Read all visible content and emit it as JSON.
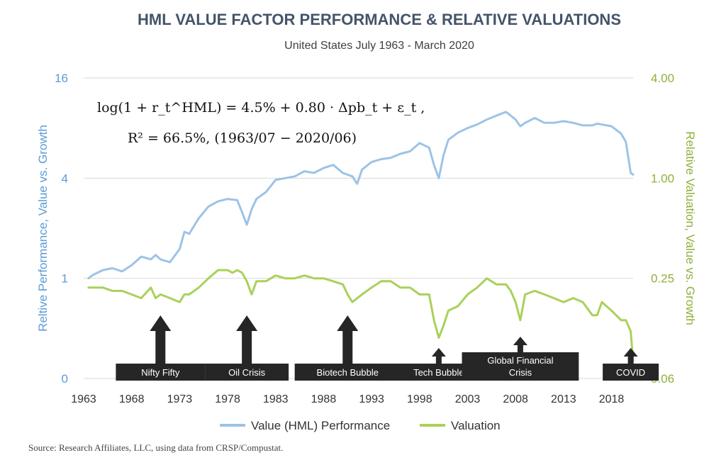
{
  "chart_data": {
    "type": "line",
    "title": "HML VALUE FACTOR PERFORMANCE & RELATIVE VALUATIONS",
    "subtitle": "United States July 1963 - March 2020",
    "ylabel_left": "Reltive Performance, Value vs. Growth",
    "ylabel_right": "Relative Valuation, Value vs. Growth",
    "x_ticks": [
      "1963",
      "1968",
      "1973",
      "1978",
      "1983",
      "1988",
      "1993",
      "1998",
      "2003",
      "2008",
      "2013",
      "2018"
    ],
    "y_left_ticks": [
      "0",
      "1",
      "4",
      "16"
    ],
    "y_right_ticks": [
      "0.06",
      "0.25",
      "1.00",
      "4.00"
    ],
    "y_scale": "log",
    "xlim": [
      1963,
      2020.25
    ],
    "grid": "horizontal",
    "legend_position": "bottom",
    "formula_line1": "log(1 + r_t^HML) = 4.5% + 0.80 · Δpb_t + ε_t ,",
    "formula_line2": "R² = 66.5%, (1963/07 − 2020/06)",
    "series": [
      {
        "name": "Value (HML) Performance",
        "color": "#9dc3e6",
        "axis": "left",
        "x": [
          1963.5,
          1964,
          1965,
          1966,
          1967,
          1968,
          1969,
          1970,
          1970.5,
          1971,
          1972,
          1973,
          1973.5,
          1974,
          1975,
          1976,
          1977,
          1978,
          1979,
          1979.5,
          1980,
          1980.5,
          1981,
          1982,
          1983,
          1984,
          1985,
          1986,
          1987,
          1988,
          1989,
          1990,
          1991,
          1991.5,
          1992,
          1993,
          1994,
          1995,
          1996,
          1997,
          1998,
          1999,
          1999.5,
          2000,
          2000.5,
          2001,
          2002,
          2003,
          2004,
          2005,
          2006,
          2007,
          2007.5,
          2008,
          2008.5,
          2009,
          2010,
          2011,
          2012,
          2013,
          2014,
          2015,
          2016,
          2016.5,
          2017,
          2018,
          2019,
          2019.5,
          2020,
          2020.25
        ],
        "values": [
          1.0,
          1.05,
          1.12,
          1.15,
          1.1,
          1.2,
          1.35,
          1.3,
          1.38,
          1.3,
          1.25,
          1.5,
          1.9,
          1.85,
          2.3,
          2.7,
          2.9,
          3.0,
          2.95,
          2.5,
          2.1,
          2.6,
          3.0,
          3.3,
          3.9,
          4.0,
          4.1,
          4.4,
          4.3,
          4.6,
          4.8,
          4.3,
          4.1,
          3.7,
          4.5,
          5.0,
          5.2,
          5.3,
          5.6,
          5.8,
          6.5,
          6.1,
          4.8,
          4.0,
          5.5,
          6.8,
          7.5,
          8.0,
          8.4,
          9.0,
          9.5,
          10.0,
          9.5,
          9.0,
          8.2,
          8.6,
          9.2,
          8.6,
          8.6,
          8.8,
          8.6,
          8.3,
          8.3,
          8.5,
          8.4,
          8.2,
          7.4,
          6.6,
          4.3,
          4.2
        ]
      },
      {
        "name": "Valuation",
        "color": "#a9d15a",
        "axis": "right",
        "x": [
          1963.5,
          1964,
          1965,
          1966,
          1967,
          1968,
          1969,
          1970,
          1970.5,
          1971,
          1972,
          1973,
          1973.5,
          1974,
          1975,
          1976,
          1977,
          1978,
          1978.5,
          1979,
          1979.5,
          1980,
          1980.5,
          1981,
          1982,
          1983,
          1984,
          1985,
          1986,
          1987,
          1988,
          1989,
          1990,
          1990.5,
          1991,
          1992,
          1993,
          1994,
          1995,
          1996,
          1997,
          1998,
          1999,
          1999.5,
          2000,
          2000.5,
          2001,
          2002,
          2003,
          2004,
          2005,
          2006,
          2007,
          2007.5,
          2008,
          2008.5,
          2009,
          2010,
          2011,
          2012,
          2013,
          2014,
          2015,
          2016,
          2016.5,
          2017,
          2018,
          2019,
          2019.5,
          2020,
          2020.25
        ],
        "values": [
          0.22,
          0.22,
          0.22,
          0.21,
          0.21,
          0.2,
          0.19,
          0.22,
          0.19,
          0.2,
          0.19,
          0.18,
          0.2,
          0.2,
          0.22,
          0.25,
          0.28,
          0.28,
          0.27,
          0.28,
          0.27,
          0.24,
          0.2,
          0.24,
          0.24,
          0.26,
          0.25,
          0.25,
          0.26,
          0.25,
          0.25,
          0.24,
          0.23,
          0.2,
          0.18,
          0.2,
          0.22,
          0.24,
          0.24,
          0.22,
          0.22,
          0.2,
          0.2,
          0.14,
          0.11,
          0.13,
          0.16,
          0.17,
          0.2,
          0.22,
          0.25,
          0.23,
          0.23,
          0.21,
          0.18,
          0.14,
          0.2,
          0.21,
          0.2,
          0.19,
          0.18,
          0.19,
          0.18,
          0.15,
          0.15,
          0.18,
          0.16,
          0.14,
          0.14,
          0.12,
          0.08
        ]
      }
    ],
    "annotations": [
      {
        "label": "Nifty Fifty",
        "x": 1971.0,
        "arrow": "large"
      },
      {
        "label": "Oil Crisis",
        "x": 1980.0,
        "arrow": "large"
      },
      {
        "label": "Biotech Bubble",
        "x": 1990.5,
        "arrow": "large"
      },
      {
        "label": "Tech Bubble",
        "x": 2000.0,
        "arrow": "small"
      },
      {
        "label": "Global Financial",
        "label2": "Crisis",
        "x": 2008.5,
        "arrow": "small"
      },
      {
        "label": "COVID",
        "x": 2020.0,
        "arrow": "small"
      }
    ]
  },
  "source": "Source: Research Affiliates, LLC, using data from CRSP/Compustat."
}
